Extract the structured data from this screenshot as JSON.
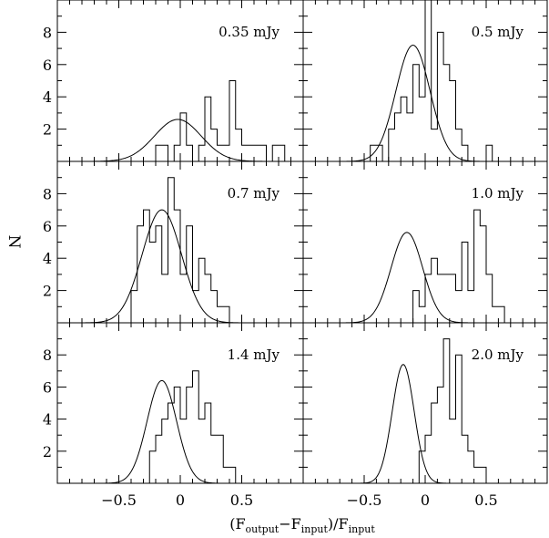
{
  "chart_data": {
    "type": "histogram-grid",
    "ylabel": "N",
    "xlabel_parts": [
      "(F",
      "output",
      "−F",
      "input",
      ")/F",
      "input"
    ],
    "xlim": [
      -1.0,
      1.0
    ],
    "ylim": [
      0,
      10
    ],
    "xticklabels": [
      -0.5,
      0,
      0.5
    ],
    "yticklabels": [
      2,
      4,
      6,
      8
    ],
    "bin_width": 0.05,
    "bin_start": -0.5,
    "panels": [
      {
        "label": "0.35 mJy",
        "counts": [
          0,
          0,
          0,
          0,
          0,
          0,
          1,
          1,
          0,
          1,
          3,
          1,
          0,
          1,
          4,
          2,
          1,
          1,
          5,
          2,
          1,
          1,
          1,
          1,
          0,
          1,
          1,
          0,
          0,
          0
        ],
        "gauss": {
          "amp": 2.6,
          "mu": -0.02,
          "sigma": 0.19
        }
      },
      {
        "label": "0.5 mJy",
        "counts": [
          0,
          1,
          1,
          0,
          2,
          3,
          4,
          3,
          6,
          4,
          10,
          2,
          8,
          6,
          5,
          2,
          1,
          0,
          0,
          0,
          1,
          0,
          0,
          0,
          0,
          0,
          0,
          0,
          0,
          0
        ],
        "gauss": {
          "amp": 7.2,
          "mu": -0.1,
          "sigma": 0.14
        }
      },
      {
        "label": "0.7 mJy",
        "counts": [
          0,
          0,
          2,
          6,
          7,
          5,
          6,
          3,
          9,
          7,
          3,
          6,
          2,
          4,
          3,
          2,
          1,
          1,
          0,
          0,
          0,
          0,
          0,
          0,
          0,
          0,
          0,
          0,
          0,
          0
        ],
        "gauss": {
          "amp": 7.0,
          "mu": -0.15,
          "sigma": 0.16
        }
      },
      {
        "label": "1.0 mJy",
        "counts": [
          0,
          0,
          0,
          0,
          0,
          0,
          0,
          0,
          2,
          1,
          3,
          4,
          3,
          3,
          3,
          2,
          5,
          2,
          7,
          6,
          3,
          1,
          1,
          0,
          0,
          0,
          0,
          0,
          0,
          0
        ],
        "gauss": {
          "amp": 5.6,
          "mu": -0.15,
          "sigma": 0.13
        }
      },
      {
        "label": "1.4 mJy",
        "counts": [
          0,
          0,
          0,
          0,
          0,
          2,
          3,
          4,
          5,
          6,
          4,
          6,
          7,
          4,
          5,
          3,
          3,
          1,
          1,
          0,
          0,
          0,
          0,
          0,
          0,
          0,
          0,
          0,
          0,
          0
        ],
        "gauss": {
          "amp": 6.4,
          "mu": -0.15,
          "sigma": 0.12
        }
      },
      {
        "label": "2.0 mJy",
        "counts": [
          0,
          0,
          0,
          0,
          0,
          0,
          0,
          0,
          0,
          2,
          3,
          5,
          6,
          9,
          4,
          8,
          3,
          2,
          1,
          1,
          0,
          0,
          0,
          0,
          0,
          0,
          0,
          0,
          0,
          0
        ],
        "gauss": {
          "amp": 7.4,
          "mu": -0.18,
          "sigma": 0.09
        }
      }
    ]
  }
}
